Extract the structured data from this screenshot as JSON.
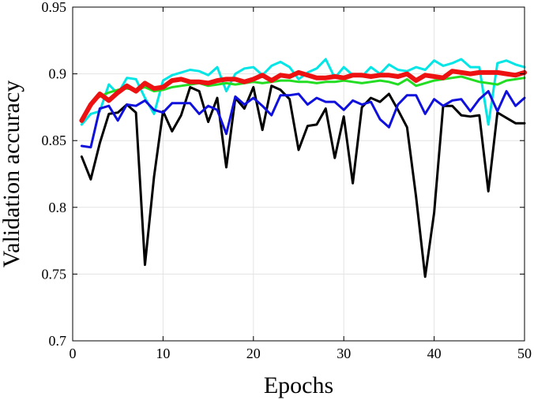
{
  "chart_data": {
    "type": "line",
    "title": "",
    "xlabel": "Epochs",
    "ylabel": "Validation accuracy",
    "xlim": [
      0,
      50
    ],
    "ylim": [
      0.7,
      0.95
    ],
    "xticks": [
      0,
      10,
      20,
      30,
      40,
      50
    ],
    "yticks": [
      0.7,
      0.75,
      0.8,
      0.85,
      0.9,
      0.95
    ],
    "xtick_labels": [
      "0",
      "10",
      "20",
      "30",
      "40",
      "50"
    ],
    "ytick_labels": [
      "0.7",
      "0.75",
      "0.8",
      "0.85",
      "0.9",
      "0.95"
    ],
    "grid": true,
    "legend": "none",
    "series": [
      {
        "color": "#00e5e5",
        "x": [
          1,
          2,
          3,
          4,
          5,
          6,
          7,
          8,
          9,
          10,
          11,
          12,
          13,
          14,
          15,
          16,
          17,
          18,
          19,
          20,
          21,
          22,
          23,
          24,
          25,
          26,
          27,
          28,
          29,
          30,
          31,
          32,
          33,
          34,
          35,
          36,
          37,
          38,
          39,
          40,
          41,
          42,
          43,
          44,
          45,
          46,
          47,
          48,
          49,
          50
        ],
        "y": [
          0.862,
          0.87,
          0.872,
          0.892,
          0.885,
          0.897,
          0.896,
          0.882,
          0.87,
          0.895,
          0.899,
          0.901,
          0.903,
          0.902,
          0.899,
          0.905,
          0.887,
          0.9,
          0.904,
          0.905,
          0.899,
          0.906,
          0.909,
          0.905,
          0.896,
          0.901,
          0.904,
          0.911,
          0.897,
          0.905,
          0.899,
          0.898,
          0.905,
          0.9,
          0.907,
          0.903,
          0.902,
          0.905,
          0.903,
          0.91,
          0.906,
          0.908,
          0.911,
          0.905,
          0.905,
          0.862,
          0.908,
          0.91,
          0.907,
          0.905
        ]
      },
      {
        "color": "#22dd22",
        "x": [
          1,
          2,
          3,
          4,
          5,
          6,
          7,
          8,
          9,
          10,
          11,
          12,
          13,
          14,
          15,
          16,
          17,
          18,
          19,
          20,
          21,
          22,
          23,
          24,
          25,
          26,
          27,
          28,
          29,
          30,
          31,
          32,
          33,
          34,
          35,
          36,
          37,
          38,
          39,
          40,
          41,
          42,
          43,
          44,
          45,
          46,
          47,
          48,
          49,
          50
        ],
        "y": [
          0.864,
          0.878,
          0.883,
          0.886,
          0.888,
          0.889,
          0.888,
          0.89,
          0.887,
          0.888,
          0.89,
          0.891,
          0.892,
          0.893,
          0.891,
          0.892,
          0.893,
          0.892,
          0.893,
          0.894,
          0.893,
          0.894,
          0.895,
          0.895,
          0.894,
          0.894,
          0.893,
          0.894,
          0.894,
          0.895,
          0.894,
          0.893,
          0.894,
          0.895,
          0.894,
          0.892,
          0.896,
          0.891,
          0.893,
          0.895,
          0.896,
          0.897,
          0.898,
          0.896,
          0.894,
          0.893,
          0.892,
          0.895,
          0.896,
          0.897
        ]
      },
      {
        "color": "#000000",
        "x": [
          1,
          2,
          3,
          4,
          5,
          6,
          7,
          8,
          9,
          10,
          11,
          12,
          13,
          14,
          15,
          16,
          17,
          18,
          19,
          20,
          21,
          22,
          23,
          24,
          25,
          26,
          27,
          28,
          29,
          30,
          31,
          32,
          33,
          34,
          35,
          36,
          37,
          38,
          39,
          40,
          41,
          42,
          43,
          44,
          45,
          46,
          47,
          48,
          49,
          50
        ],
        "y": [
          0.838,
          0.821,
          0.848,
          0.87,
          0.871,
          0.877,
          0.871,
          0.757,
          0.823,
          0.872,
          0.857,
          0.869,
          0.89,
          0.887,
          0.864,
          0.882,
          0.83,
          0.882,
          0.874,
          0.89,
          0.858,
          0.891,
          0.888,
          0.881,
          0.843,
          0.861,
          0.862,
          0.874,
          0.837,
          0.868,
          0.818,
          0.875,
          0.882,
          0.879,
          0.885,
          0.873,
          0.86,
          0.808,
          0.748,
          0.796,
          0.876,
          0.876,
          0.869,
          0.868,
          0.869,
          0.812,
          0.871,
          0.867,
          0.863,
          0.863
        ]
      },
      {
        "color": "#1010dd",
        "x": [
          1,
          2,
          3,
          4,
          5,
          6,
          7,
          8,
          9,
          10,
          11,
          12,
          13,
          14,
          15,
          16,
          17,
          18,
          19,
          20,
          21,
          22,
          23,
          24,
          25,
          26,
          27,
          28,
          29,
          30,
          31,
          32,
          33,
          34,
          35,
          36,
          37,
          38,
          39,
          40,
          41,
          42,
          43,
          44,
          45,
          46,
          47,
          48,
          49,
          50
        ],
        "y": [
          0.846,
          0.845,
          0.874,
          0.876,
          0.865,
          0.877,
          0.876,
          0.88,
          0.873,
          0.871,
          0.878,
          0.878,
          0.878,
          0.87,
          0.876,
          0.873,
          0.855,
          0.883,
          0.877,
          0.882,
          0.876,
          0.869,
          0.884,
          0.884,
          0.885,
          0.877,
          0.882,
          0.879,
          0.879,
          0.873,
          0.88,
          0.877,
          0.879,
          0.866,
          0.86,
          0.877,
          0.884,
          0.884,
          0.87,
          0.881,
          0.876,
          0.88,
          0.881,
          0.872,
          0.881,
          0.887,
          0.872,
          0.887,
          0.876,
          0.882
        ]
      },
      {
        "color": "#ee1111",
        "x": [
          1,
          2,
          3,
          4,
          5,
          6,
          7,
          8,
          9,
          10,
          11,
          12,
          13,
          14,
          15,
          16,
          17,
          18,
          19,
          20,
          21,
          22,
          23,
          24,
          25,
          26,
          27,
          28,
          29,
          30,
          31,
          32,
          33,
          34,
          35,
          36,
          37,
          38,
          39,
          40,
          41,
          42,
          43,
          44,
          45,
          46,
          47,
          48,
          49,
          50
        ],
        "y": [
          0.865,
          0.877,
          0.885,
          0.88,
          0.886,
          0.891,
          0.887,
          0.893,
          0.889,
          0.89,
          0.895,
          0.896,
          0.894,
          0.894,
          0.893,
          0.895,
          0.896,
          0.896,
          0.894,
          0.896,
          0.899,
          0.895,
          0.899,
          0.898,
          0.901,
          0.899,
          0.897,
          0.897,
          0.898,
          0.897,
          0.899,
          0.899,
          0.898,
          0.899,
          0.899,
          0.898,
          0.9,
          0.895,
          0.899,
          0.898,
          0.897,
          0.902,
          0.901,
          0.9,
          0.901,
          0.901,
          0.901,
          0.9,
          0.899,
          0.901
        ]
      }
    ]
  }
}
